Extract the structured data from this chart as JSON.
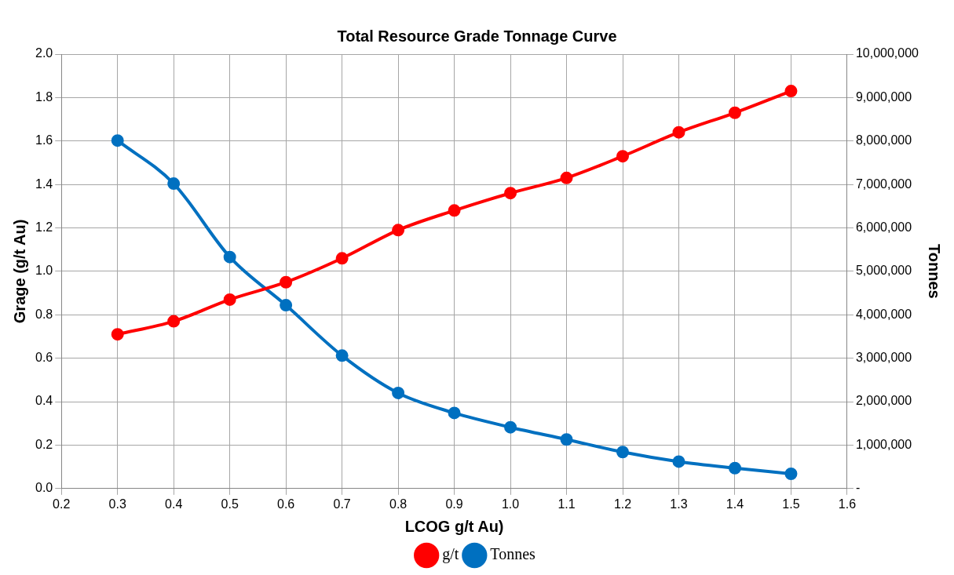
{
  "chart_data": {
    "type": "line",
    "title": "Total Resource Grade Tonnage Curve",
    "xlabel": "LCOG g/t Au)",
    "ylabel": "Grage (g/t Au)",
    "y2label": "Tonnes",
    "x": [
      0.3,
      0.4,
      0.5,
      0.6,
      0.7,
      0.8,
      0.9,
      1.0,
      1.1,
      1.2,
      1.3,
      1.4,
      1.5
    ],
    "series": [
      {
        "name": "g/t",
        "color": "#ff0000",
        "values": [
          0.71,
          0.77,
          0.87,
          0.95,
          1.06,
          1.19,
          1.28,
          1.36,
          1.43,
          1.53,
          1.64,
          1.73,
          1.83
        ]
      },
      {
        "name": "Tonnes",
        "color": "#0070c0",
        "axis": "y2",
        "values": [
          8010000,
          7020000,
          5330000,
          4220000,
          3060000,
          2200000,
          1740000,
          1410000,
          1130000,
          840000,
          620000,
          470000,
          340000
        ]
      }
    ],
    "xlim": [
      0.2,
      1.6
    ],
    "xticks": [
      {
        "value": 0.2,
        "label": "0.2"
      },
      {
        "value": 0.3,
        "label": "0.3"
      },
      {
        "value": 0.4,
        "label": "0.4"
      },
      {
        "value": 0.5,
        "label": "0.5"
      },
      {
        "value": 0.6,
        "label": "0.6"
      },
      {
        "value": 0.7,
        "label": "0.7"
      },
      {
        "value": 0.8,
        "label": "0.8"
      },
      {
        "value": 0.9,
        "label": "0.9"
      },
      {
        "value": 1.0,
        "label": "1.0"
      },
      {
        "value": 1.1,
        "label": "1.1"
      },
      {
        "value": 1.2,
        "label": "1.2"
      },
      {
        "value": 1.3,
        "label": "1.3"
      },
      {
        "value": 1.4,
        "label": "1.4"
      },
      {
        "value": 1.5,
        "label": "1.5"
      },
      {
        "value": 1.6,
        "label": "1.6"
      }
    ],
    "ylim": [
      0,
      2
    ],
    "yticks": [
      {
        "value": 0,
        "label": "0.0"
      },
      {
        "value": 0.2,
        "label": "0.2"
      },
      {
        "value": 0.4,
        "label": "0.4"
      },
      {
        "value": 0.6,
        "label": "0.6"
      },
      {
        "value": 0.8,
        "label": "0.8"
      },
      {
        "value": 1,
        "label": "1.0"
      },
      {
        "value": 1.2,
        "label": "1.2"
      },
      {
        "value": 1.4,
        "label": "1.4"
      },
      {
        "value": 1.6,
        "label": "1.6"
      },
      {
        "value": 1.8,
        "label": "1.8"
      },
      {
        "value": 2,
        "label": "2.0"
      }
    ],
    "y2lim": [
      0,
      10000000
    ],
    "y2ticks": [
      {
        "value": 0,
        "label": "-"
      },
      {
        "value": 1000000,
        "label": "1,000,000"
      },
      {
        "value": 2000000,
        "label": "2,000,000"
      },
      {
        "value": 3000000,
        "label": "3,000,000"
      },
      {
        "value": 4000000,
        "label": "4,000,000"
      },
      {
        "value": 5000000,
        "label": "5,000,000"
      },
      {
        "value": 6000000,
        "label": "6,000,000"
      },
      {
        "value": 7000000,
        "label": "7,000,000"
      },
      {
        "value": 8000000,
        "label": "8,000,000"
      },
      {
        "value": 9000000,
        "label": "9,000,000"
      },
      {
        "value": 10000000,
        "label": "10,000,000"
      }
    ],
    "grid": true,
    "legend": "bottom",
    "marker": "circle",
    "line_style": "solid"
  }
}
